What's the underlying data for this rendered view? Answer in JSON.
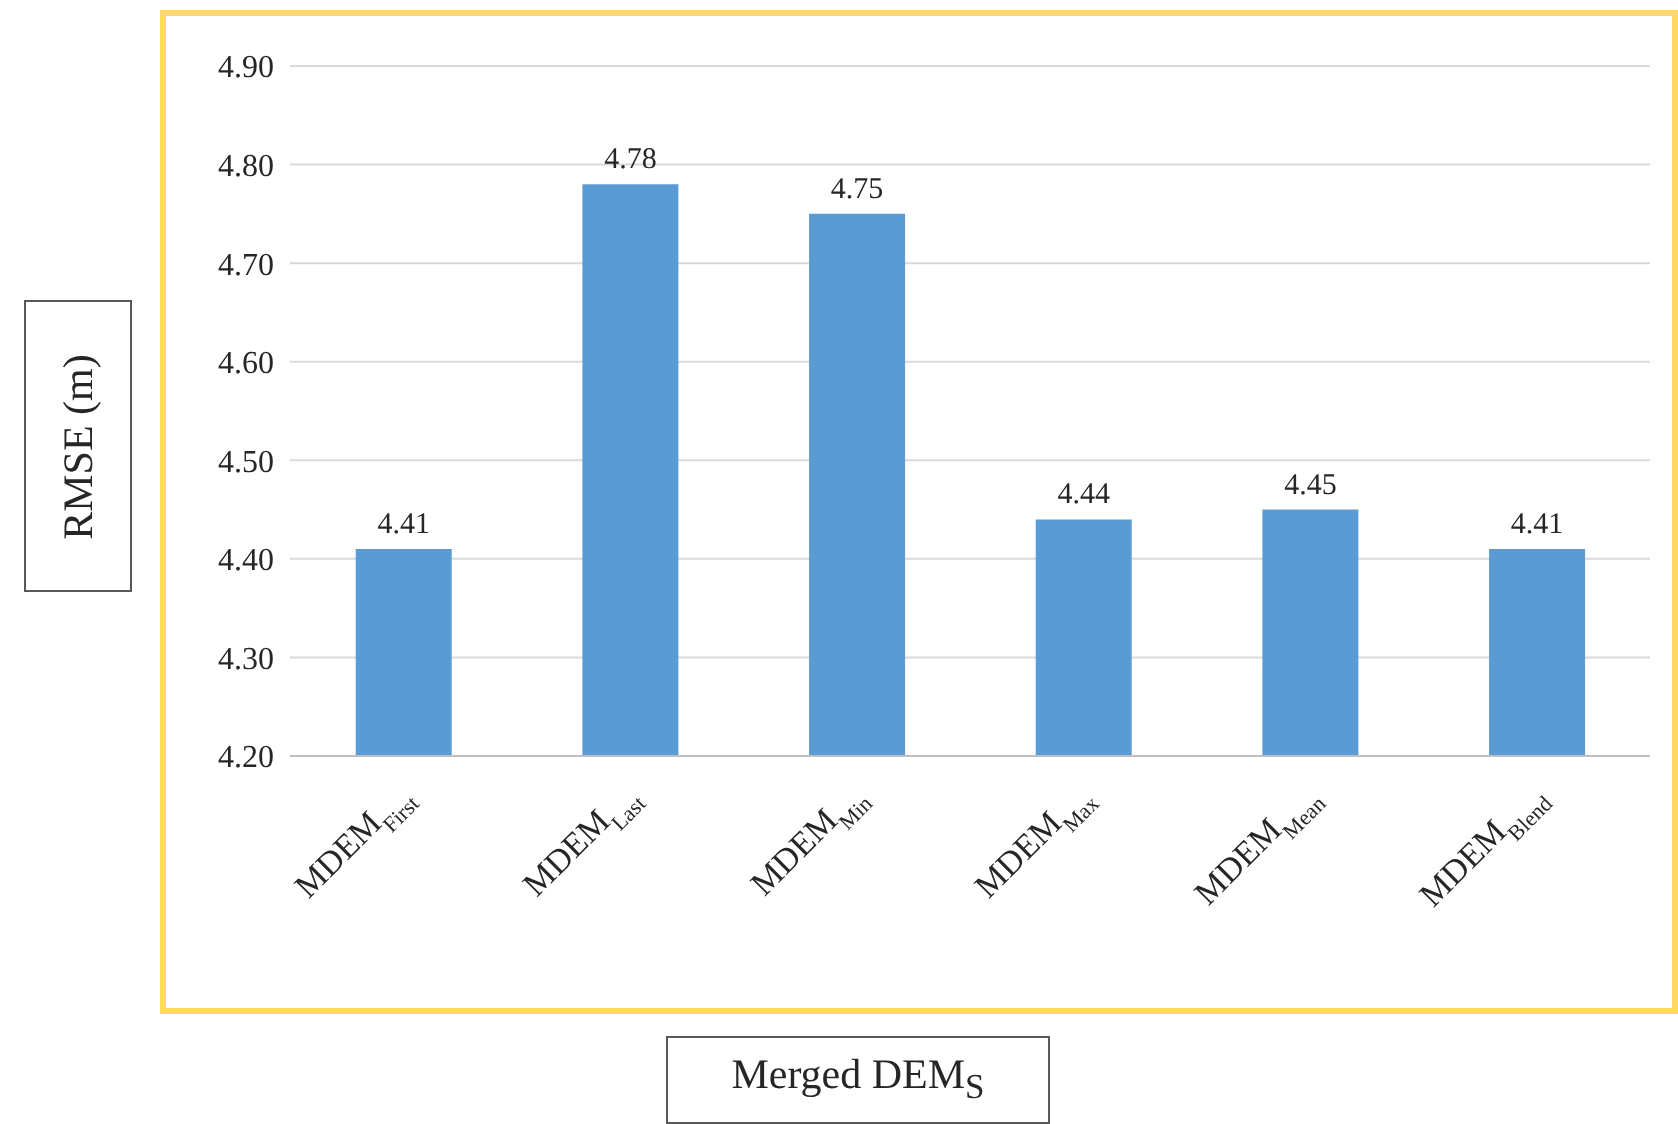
{
  "chart_data": {
    "type": "bar",
    "xlabel": "Merged DEM$_{S}$",
    "ylabel": "RMSE (m)",
    "categories": [
      "MDEM$_{First}$",
      "MDEM$_{Last}$",
      "MDEM$_{Min}$",
      "MDEM$_{Max}$",
      "MDEM$_{Mean}$",
      "MDEM$_{Blend}$"
    ],
    "values": [
      4.41,
      4.78,
      4.75,
      4.44,
      4.45,
      4.41
    ],
    "color": "#5b9bd5",
    "ylim": [
      4.2,
      4.9
    ],
    "yticks": [
      {
        "value": 4.2,
        "label": "4.20"
      },
      {
        "value": 4.3,
        "label": "4.30"
      },
      {
        "value": 4.4,
        "label": "4.40"
      },
      {
        "value": 4.5,
        "label": "4.50"
      },
      {
        "value": 4.6,
        "label": "4.60"
      },
      {
        "value": 4.7,
        "label": "4.70"
      },
      {
        "value": 4.8,
        "label": "4.80"
      },
      {
        "value": 4.9,
        "label": "4.90"
      }
    ],
    "grid": "y",
    "data_labels": true
  }
}
